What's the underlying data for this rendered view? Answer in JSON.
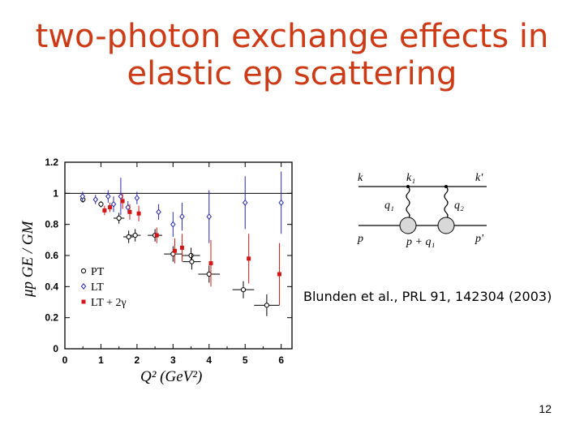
{
  "slide": {
    "title_line1": "two-photon exchange effects in",
    "title_line2": "elastic ep scattering",
    "citation": "Blunden et al., PRL 91, 142304  (2003)",
    "page_number": "12"
  },
  "colors": {
    "title": "#cc3b16",
    "pt": "#000000",
    "lt": "#2a2ab0",
    "tpe": "#d01818"
  },
  "chart_data": {
    "type": "scatter",
    "xlabel": "Q² (GeV²)",
    "ylabel": "μp GE / GM",
    "xlim": [
      0,
      6.3
    ],
    "ylim": [
      0,
      1.2
    ],
    "xticks": [
      "0",
      "1",
      "2",
      "3",
      "4",
      "5",
      "6"
    ],
    "yticks": [
      "0",
      "0.2",
      "0.4",
      "0.6",
      "0.8",
      "1",
      "1.2"
    ],
    "reference_line_y": 1.0,
    "legend": {
      "placement": "bottom-left",
      "entries": [
        "PT",
        "LT",
        "LT + 2γ"
      ]
    },
    "series": [
      {
        "name": "PT",
        "marker": "open-circle",
        "points": [
          {
            "x": 0.5,
            "y": 0.96,
            "yerr": 0.02,
            "xerr": 0.0
          },
          {
            "x": 1.0,
            "y": 0.93,
            "yerr": 0.02,
            "xerr": 0.0
          },
          {
            "x": 1.5,
            "y": 0.84,
            "yerr": 0.035,
            "xerr": 0.15
          },
          {
            "x": 1.95,
            "y": 0.73,
            "yerr": 0.04,
            "xerr": 0.15
          },
          {
            "x": 1.77,
            "y": 0.72,
            "yerr": 0.04,
            "xerr": 0.15
          },
          {
            "x": 2.5,
            "y": 0.73,
            "yerr": 0.04,
            "xerr": 0.2
          },
          {
            "x": 3.0,
            "y": 0.61,
            "yerr": 0.05,
            "xerr": 0.25
          },
          {
            "x": 3.5,
            "y": 0.6,
            "yerr": 0.05,
            "xerr": 0.25
          },
          {
            "x": 3.52,
            "y": 0.56,
            "yerr": 0.05,
            "xerr": 0.25
          },
          {
            "x": 4.0,
            "y": 0.48,
            "yerr": 0.055,
            "xerr": 0.3
          },
          {
            "x": 4.95,
            "y": 0.38,
            "yerr": 0.055,
            "xerr": 0.3
          },
          {
            "x": 5.6,
            "y": 0.28,
            "yerr": 0.07,
            "xerr": 0.35
          }
        ]
      },
      {
        "name": "LT",
        "marker": "open-diamond",
        "points": [
          {
            "x": 0.49,
            "y": 0.98,
            "yerr": 0.03
          },
          {
            "x": 0.85,
            "y": 0.96,
            "yerr": 0.03
          },
          {
            "x": 1.2,
            "y": 0.98,
            "yerr": 0.04
          },
          {
            "x": 1.75,
            "y": 0.91,
            "yerr": 0.04
          },
          {
            "x": 2.0,
            "y": 0.97,
            "yerr": 0.04
          },
          {
            "x": 1.35,
            "y": 0.93,
            "yerr": 0.05
          },
          {
            "x": 1.55,
            "y": 0.98,
            "yerr": 0.12
          },
          {
            "x": 2.6,
            "y": 0.88,
            "yerr": 0.05
          },
          {
            "x": 3.0,
            "y": 0.8,
            "yerr": 0.08
          },
          {
            "x": 3.25,
            "y": 0.85,
            "yerr": 0.09
          },
          {
            "x": 4.0,
            "y": 0.85,
            "yerr": 0.17
          },
          {
            "x": 5.0,
            "y": 0.94,
            "yerr": 0.17
          },
          {
            "x": 6.0,
            "y": 0.94,
            "yerr": 0.2
          }
        ]
      },
      {
        "name": "LT + 2γ",
        "marker": "filled-square",
        "points": [
          {
            "x": 1.1,
            "y": 0.89,
            "yerr": 0.03
          },
          {
            "x": 1.25,
            "y": 0.91,
            "yerr": 0.03
          },
          {
            "x": 1.6,
            "y": 0.95,
            "yerr": 0.05
          },
          {
            "x": 1.8,
            "y": 0.88,
            "yerr": 0.05
          },
          {
            "x": 2.05,
            "y": 0.87,
            "yerr": 0.05
          },
          {
            "x": 2.55,
            "y": 0.73,
            "yerr": 0.05
          },
          {
            "x": 3.05,
            "y": 0.63,
            "yerr": 0.08
          },
          {
            "x": 3.25,
            "y": 0.65,
            "yerr": 0.09
          },
          {
            "x": 4.05,
            "y": 0.55,
            "yerr": 0.15
          },
          {
            "x": 5.1,
            "y": 0.58,
            "yerr": 0.16
          },
          {
            "x": 5.95,
            "y": 0.48,
            "yerr": 0.2
          }
        ]
      }
    ]
  },
  "diagram": {
    "k": "k",
    "k1": "k₁",
    "k_prime": "k'",
    "q1": "q₁",
    "q2": "q₂",
    "p": "p",
    "p_plus_q1": "p + q₁",
    "p_prime": "p'"
  }
}
